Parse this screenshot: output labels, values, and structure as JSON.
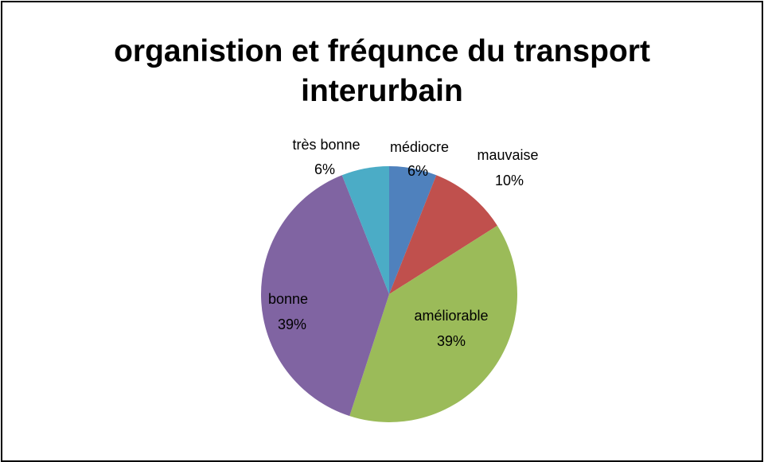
{
  "chart_data": {
    "type": "pie",
    "title": "organistion et fréqunce du transport interurbain",
    "categories": [
      "médiocre",
      "mauvaise",
      "améliorable",
      "bonne",
      "très bonne"
    ],
    "values": [
      6,
      10,
      39,
      39,
      6
    ],
    "value_labels": [
      "6%",
      "10%",
      "39%",
      "39%",
      "6%"
    ],
    "colors": [
      "#4f81bd",
      "#c0504d",
      "#9bbb59",
      "#8064a2",
      "#4bacc6"
    ]
  }
}
